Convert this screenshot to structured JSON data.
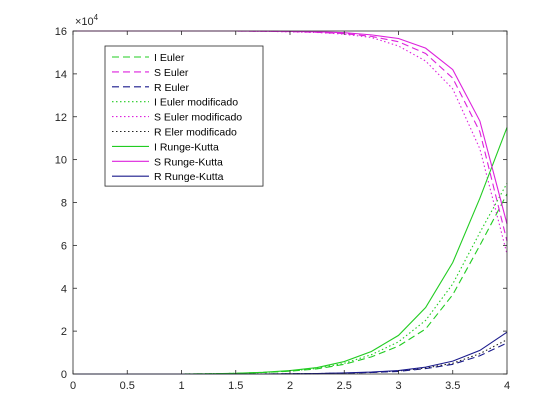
{
  "chart_data": {
    "type": "line",
    "title": "",
    "xlabel": "",
    "ylabel": "",
    "xlim": [
      0,
      4
    ],
    "ylim": [
      0,
      16
    ],
    "y_multiplier": "×10",
    "y_multiplier_exp": "4",
    "x_ticks": [
      "0",
      "0.5",
      "1",
      "1.5",
      "2",
      "2.5",
      "3",
      "3.5",
      "4"
    ],
    "y_ticks": [
      "0",
      "2",
      "4",
      "6",
      "8",
      "10",
      "12",
      "14",
      "16"
    ],
    "grid": false,
    "legend_placement": "top-left",
    "x": [
      0,
      0.25,
      0.5,
      0.75,
      1,
      1.25,
      1.5,
      1.75,
      2,
      2.25,
      2.5,
      2.75,
      3,
      3.25,
      3.5,
      3.75,
      4
    ],
    "series": [
      {
        "name": "I Euler",
        "color": "#22cc22",
        "dash": "dashed",
        "values": [
          0,
          0,
          0,
          0,
          0,
          0.01,
          0.03,
          0.07,
          0.13,
          0.24,
          0.45,
          0.8,
          1.3,
          2.1,
          3.7,
          6.0,
          8.4
        ]
      },
      {
        "name": "S Euler",
        "color": "#dd22dd",
        "dash": "dashed",
        "values": [
          16,
          16,
          16,
          16,
          16,
          16,
          16,
          15.99,
          15.97,
          15.94,
          15.88,
          15.75,
          15.5,
          14.95,
          13.8,
          11.3,
          6.2
        ]
      },
      {
        "name": "R Euler",
        "color": "#1a1a8c",
        "dash": "dashed",
        "values": [
          0,
          0,
          0,
          0,
          0,
          0,
          0,
          0,
          0.01,
          0.02,
          0.04,
          0.07,
          0.12,
          0.25,
          0.45,
          0.85,
          1.45
        ]
      },
      {
        "name": "I Euler modificado",
        "color": "#22cc22",
        "dash": "dotted",
        "values": [
          0,
          0,
          0,
          0,
          0,
          0.01,
          0.03,
          0.07,
          0.14,
          0.26,
          0.5,
          0.9,
          1.5,
          2.5,
          4.2,
          6.6,
          8.9
        ]
      },
      {
        "name": "S Euler modificado",
        "color": "#dd22dd",
        "dash": "dotted",
        "values": [
          16,
          16,
          16,
          16,
          16,
          16,
          16,
          15.99,
          15.96,
          15.93,
          15.85,
          15.7,
          15.3,
          14.6,
          13.3,
          10.5,
          5.6
        ]
      },
      {
        "name": "R Eler modificado",
        "color": "#222222",
        "dash": "dotted",
        "values": [
          0,
          0,
          0,
          0,
          0,
          0,
          0,
          0,
          0.01,
          0.02,
          0.04,
          0.08,
          0.14,
          0.28,
          0.5,
          0.95,
          1.6
        ]
      },
      {
        "name": "I Runge-Kutta",
        "color": "#22cc22",
        "dash": "solid",
        "values": [
          0,
          0,
          0,
          0,
          0,
          0.01,
          0.03,
          0.08,
          0.16,
          0.3,
          0.58,
          1.05,
          1.8,
          3.1,
          5.2,
          8.2,
          11.5
        ]
      },
      {
        "name": "S Runge-Kutta",
        "color": "#dd22dd",
        "dash": "solid",
        "values": [
          16,
          16,
          16,
          16,
          16,
          16,
          16,
          15.99,
          15.98,
          15.96,
          15.92,
          15.82,
          15.65,
          15.2,
          14.2,
          11.8,
          7.0
        ]
      },
      {
        "name": "R Runge-Kutta",
        "color": "#1a1a8c",
        "dash": "solid",
        "values": [
          0,
          0,
          0,
          0,
          0,
          0,
          0,
          0,
          0.01,
          0.02,
          0.05,
          0.09,
          0.16,
          0.32,
          0.6,
          1.1,
          1.95
        ]
      }
    ]
  }
}
